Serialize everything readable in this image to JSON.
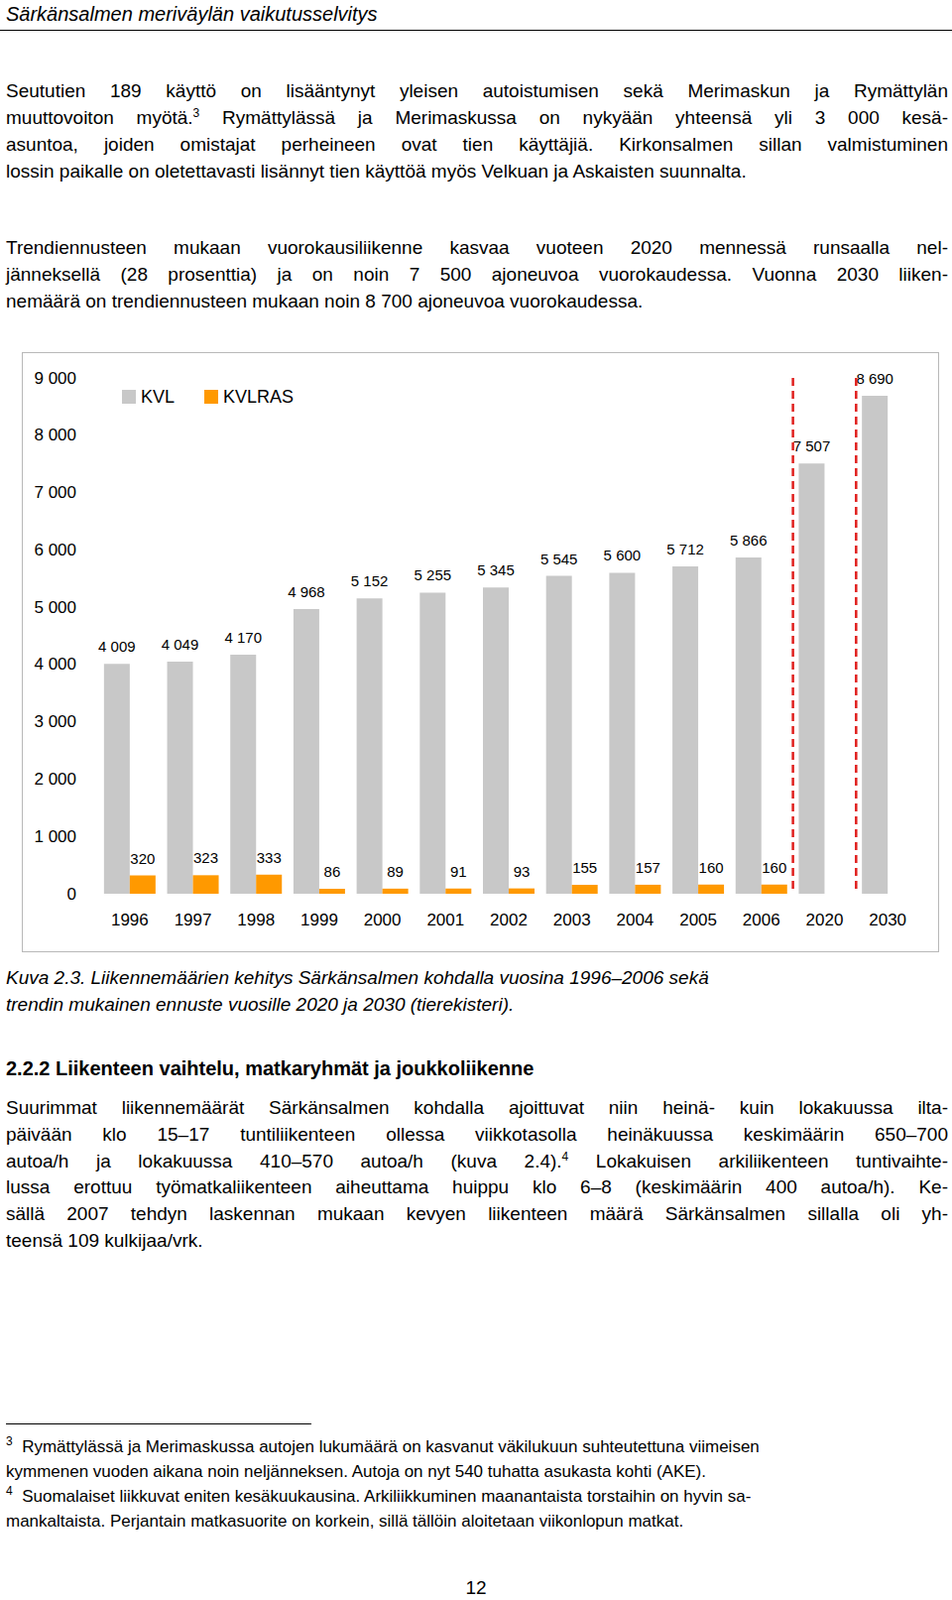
{
  "header": {
    "title": "Särkänsalmen meriväylän vaikutusselvitys"
  },
  "paragraphs": [
    {
      "lines": [
        "Seututien 189 käyttö on lisääntynyt yleisen autoistumisen sekä Merimaskun ja Rymättylän",
        [
          "muuttovoiton myötä.",
          {
            "sup": "3"
          },
          " Rymättylässä ja Merimaskussa on nykyään yhteensä yli 3 000 kesä-"
        ],
        "asuntoa, joiden omistajat perheineen ovat tien käyttäjiä. Kirkonsalmen sillan valmistuminen",
        "lossin paikalle on oletettavasti lisännyt tien käyttöä myös Velkuan ja Askaisten suunnalta."
      ]
    },
    {
      "lines": [
        "Trendiennusteen mukaan vuorokausiliikenne kasvaa vuoteen 2020 mennessä runsaalla nel-",
        "jänneksellä (28 prosenttia) ja on noin 7 500 ajoneuvoa vuorokaudessa. Vuonna 2030 liiken-",
        "nemäärä on trendiennusteen mukaan noin 8 700 ajoneuvoa vuorokaudessa."
      ]
    }
  ],
  "chart_data": {
    "type": "bar",
    "categories": [
      "1996",
      "1997",
      "1998",
      "1999",
      "2000",
      "2001",
      "2002",
      "2003",
      "2004",
      "2005",
      "2006",
      "2020",
      "2030"
    ],
    "series": [
      {
        "name": "KVL",
        "color": "#c8c8c8",
        "values": [
          4009,
          4049,
          4170,
          4968,
          5152,
          5255,
          5345,
          5545,
          5600,
          5712,
          5866,
          7507,
          8690
        ],
        "value_labels": [
          "4 009",
          "4 049",
          "4 170",
          "4 968",
          "5 152",
          "5 255",
          "5 345",
          "5 545",
          "5 600",
          "5 712",
          "5 866",
          "7 507",
          "8 690"
        ]
      },
      {
        "name": "KVLRAS",
        "color": "#ff9900",
        "values": [
          320,
          323,
          333,
          86,
          89,
          91,
          93,
          155,
          157,
          160,
          160,
          null,
          null
        ]
      }
    ],
    "ylim": [
      0,
      9000
    ],
    "yticks": [
      0,
      {
        "value": 1000,
        "label": "1 000"
      },
      {
        "value": 2000,
        "label": "2 000"
      },
      {
        "value": 3000,
        "label": "3 000"
      },
      {
        "value": 4000,
        "label": "4 000"
      },
      {
        "value": 5000,
        "label": "5 000"
      },
      {
        "value": 6000,
        "label": "6 000"
      },
      {
        "value": 7000,
        "label": "7 000"
      },
      {
        "value": 8000,
        "label": "8 000"
      },
      {
        "value": 9000,
        "label": "9 000"
      }
    ],
    "grid": false,
    "legend": "upper left",
    "data_labels": true
  },
  "caption": {
    "lines": [
      "Kuva 2.3. Liikennemäärien kehitys Särkänsalmen kohdalla vuosina 1996–2006 sekä",
      "trendin mukainen ennuste vuosille 2020 ja 2030 (tierekisteri)."
    ]
  },
  "section": {
    "heading": "2.2.2 Liikenteen vaihtelu, matkaryhmät ja joukkoliikenne",
    "paragraph": {
      "lines": [
        "Suurimmat liikennemäärät Särkänsalmen kohdalla ajoittuvat niin heinä- kuin lokakuussa ilta-",
        "päivään klo 15–17 tuntiliikenteen ollessa viikkotasolla heinäkuussa keskimäärin 650–700",
        [
          "autoa/h ja lokakuussa 410–570 autoa/h (kuva 2.4).",
          {
            "sup": "4"
          },
          " Lokakuisen arkiliikenteen tuntivaihte-"
        ],
        "lussa erottuu työmatkaliikenteen aiheuttama huippu klo 6–8 (keskimäärin 400 autoa/h). Ke-",
        "sällä 2007 tehdyn laskennan mukaan kevyen liikenteen määrä Särkänsalmen sillalla oli yh-",
        "teensä 109 kulkijaa/vrk."
      ]
    }
  },
  "footnotes": [
    {
      "marker": "3",
      "lines": [
        "Rymättylässä ja Merimaskussa autojen lukumäärä on kasvanut väkilukuun suhteutettuna viimeisen",
        "kymmenen vuoden aikana noin neljänneksen. Autoja on nyt 540 tuhatta asukasta kohti (AKE)."
      ]
    },
    {
      "marker": "4",
      "lines": [
        "Suomalaiset liikkuvat eniten kesäkuukausina. Arkiliikkuminen maanantaista torstaihin on hyvin sa-",
        "mankaltaista. Perjantain matkasuorite on korkein, sillä tällöin aloitetaan viikonlopun matkat."
      ]
    }
  ],
  "page_number": "12"
}
